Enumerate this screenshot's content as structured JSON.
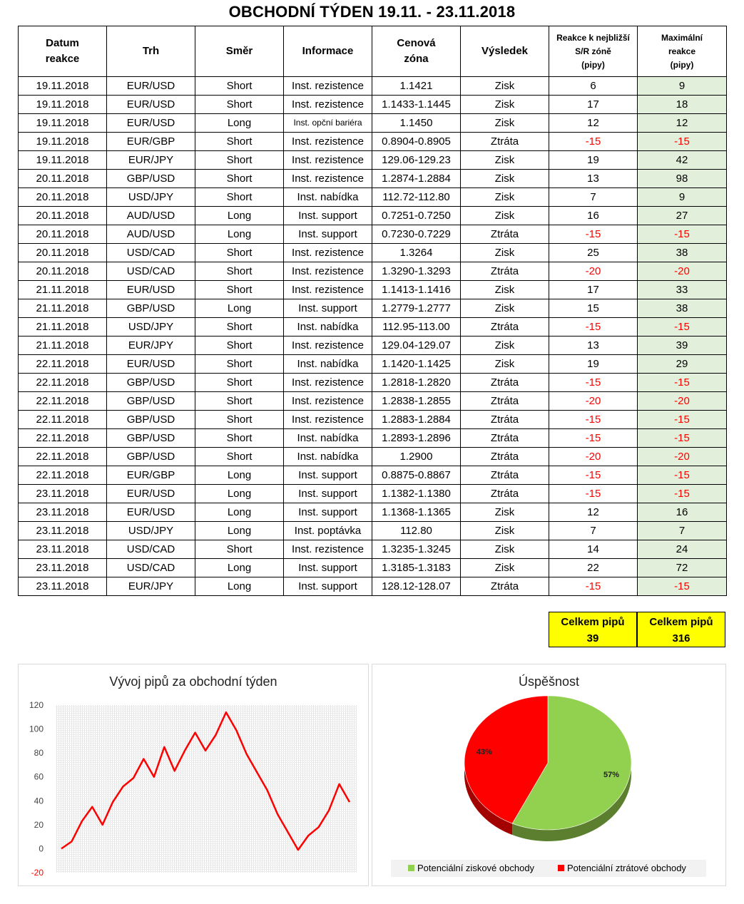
{
  "title": "OBCHODNÍ TÝDEN 19.11. - 23.11.2018",
  "headers": {
    "date": [
      "Datum",
      "reakce"
    ],
    "market": "Trh",
    "direction": "Směr",
    "info": "Informace",
    "zone": [
      "Cenová",
      "zóna"
    ],
    "result": "Výsledek",
    "reaction": [
      "Reakce k nejbližší",
      "S/R zóně",
      "(pipy)"
    ],
    "max": [
      "Maximální",
      "reakce",
      "(pipy)"
    ]
  },
  "rows": [
    [
      "19.11.2018",
      "EUR/USD",
      "Short",
      "Inst. rezistence",
      "1.1421",
      "Zisk",
      "6",
      "9"
    ],
    [
      "19.11.2018",
      "EUR/USD",
      "Short",
      "Inst. rezistence",
      "1.1433-1.1445",
      "Zisk",
      "17",
      "18"
    ],
    [
      "19.11.2018",
      "EUR/USD",
      "Long",
      "Inst. opční bariéra",
      "1.1450",
      "Zisk",
      "12",
      "12"
    ],
    [
      "19.11.2018",
      "EUR/GBP",
      "Short",
      "Inst. rezistence",
      "0.8904-0.8905",
      "Ztráta",
      "-15",
      "-15"
    ],
    [
      "19.11.2018",
      "EUR/JPY",
      "Short",
      "Inst. rezistence",
      "129.06-129.23",
      "Zisk",
      "19",
      "42"
    ],
    [
      "20.11.2018",
      "GBP/USD",
      "Short",
      "Inst. rezistence",
      "1.2874-1.2884",
      "Zisk",
      "13",
      "98"
    ],
    [
      "20.11.2018",
      "USD/JPY",
      "Short",
      "Inst. nabídka",
      "112.72-112.80",
      "Zisk",
      "7",
      "9"
    ],
    [
      "20.11.2018",
      "AUD/USD",
      "Long",
      "Inst. support",
      "0.7251-0.7250",
      "Zisk",
      "16",
      "27"
    ],
    [
      "20.11.2018",
      "AUD/USD",
      "Long",
      "Inst. support",
      "0.7230-0.7229",
      "Ztráta",
      "-15",
      "-15"
    ],
    [
      "20.11.2018",
      "USD/CAD",
      "Short",
      "Inst. rezistence",
      "1.3264",
      "Zisk",
      "25",
      "38"
    ],
    [
      "20.11.2018",
      "USD/CAD",
      "Short",
      "Inst. rezistence",
      "1.3290-1.3293",
      "Ztráta",
      "-20",
      "-20"
    ],
    [
      "21.11.2018",
      "EUR/USD",
      "Short",
      "Inst. rezistence",
      "1.1413-1.1416",
      "Zisk",
      "17",
      "33"
    ],
    [
      "21.11.2018",
      "GBP/USD",
      "Long",
      "Inst. support",
      "1.2779-1.2777",
      "Zisk",
      "15",
      "38"
    ],
    [
      "21.11.2018",
      "USD/JPY",
      "Short",
      "Inst. nabídka",
      "112.95-113.00",
      "Ztráta",
      "-15",
      "-15"
    ],
    [
      "21.11.2018",
      "EUR/JPY",
      "Short",
      "Inst. rezistence",
      "129.04-129.07",
      "Zisk",
      "13",
      "39"
    ],
    [
      "22.11.2018",
      "EUR/USD",
      "Short",
      "Inst. nabídka",
      "1.1420-1.1425",
      "Zisk",
      "19",
      "29"
    ],
    [
      "22.11.2018",
      "GBP/USD",
      "Short",
      "Inst. rezistence",
      "1.2818-1.2820",
      "Ztráta",
      "-15",
      "-15"
    ],
    [
      "22.11.2018",
      "GBP/USD",
      "Short",
      "Inst. rezistence",
      "1.2838-1.2855",
      "Ztráta",
      "-20",
      "-20"
    ],
    [
      "22.11.2018",
      "GBP/USD",
      "Short",
      "Inst. rezistence",
      "1.2883-1.2884",
      "Ztráta",
      "-15",
      "-15"
    ],
    [
      "22.11.2018",
      "GBP/USD",
      "Short",
      "Inst. nabídka",
      "1.2893-1.2896",
      "Ztráta",
      "-15",
      "-15"
    ],
    [
      "22.11.2018",
      "GBP/USD",
      "Short",
      "Inst. nabídka",
      "1.2900",
      "Ztráta",
      "-20",
      "-20"
    ],
    [
      "22.11.2018",
      "EUR/GBP",
      "Long",
      "Inst. support",
      "0.8875-0.8867",
      "Ztráta",
      "-15",
      "-15"
    ],
    [
      "23.11.2018",
      "EUR/USD",
      "Long",
      "Inst. support",
      "1.1382-1.1380",
      "Ztráta",
      "-15",
      "-15"
    ],
    [
      "23.11.2018",
      "EUR/USD",
      "Long",
      "Inst. support",
      "1.1368-1.1365",
      "Zisk",
      "12",
      "16"
    ],
    [
      "23.11.2018",
      "USD/JPY",
      "Long",
      "Inst. poptávka",
      "112.80",
      "Zisk",
      "7",
      "7"
    ],
    [
      "23.11.2018",
      "USD/CAD",
      "Short",
      "Inst. rezistence",
      "1.3235-1.3245",
      "Zisk",
      "14",
      "24"
    ],
    [
      "23.11.2018",
      "USD/CAD",
      "Long",
      "Inst. support",
      "1.3185-1.3183",
      "Zisk",
      "22",
      "72"
    ],
    [
      "23.11.2018",
      "EUR/JPY",
      "Long",
      "Inst. support",
      "128.12-128.07",
      "Ztráta",
      "-15",
      "-15"
    ]
  ],
  "totals": {
    "reaction": {
      "label": "Celkem pipů",
      "value": "39"
    },
    "max": {
      "label": "Celkem pipů",
      "value": "316"
    }
  },
  "colors": {
    "negative": "#ff0000",
    "max_column": "#e2efda",
    "totals_bg": "#ffff00",
    "line": "#ff0000",
    "pie_win": "#92d050",
    "pie_loss": "#ff0000"
  },
  "chart_data": [
    {
      "type": "line",
      "title": "Vývoj pipů za obchodní týden",
      "xlabel": "",
      "ylabel": "",
      "y_ticks": [
        "120",
        "100",
        "80",
        "60",
        "40",
        "20",
        "0",
        "-20"
      ],
      "ylim": [
        -20,
        120
      ],
      "grid": true,
      "series": [
        {
          "values": [
            0,
            6,
            23,
            35,
            20,
            39,
            52,
            59,
            75,
            60,
            85,
            65,
            82,
            97,
            82,
            95,
            114,
            99,
            79,
            64,
            49,
            29,
            14,
            -1,
            11,
            18,
            32,
            54,
            39
          ]
        }
      ]
    },
    {
      "type": "pie",
      "title": "Úspěšnost",
      "labels": [
        "Potenciální ziskové obchody",
        "Potenciální ztrátové obchody"
      ],
      "values": [
        57,
        43
      ],
      "value_labels": [
        "57%",
        "43%"
      ],
      "legend": "bottom"
    }
  ]
}
